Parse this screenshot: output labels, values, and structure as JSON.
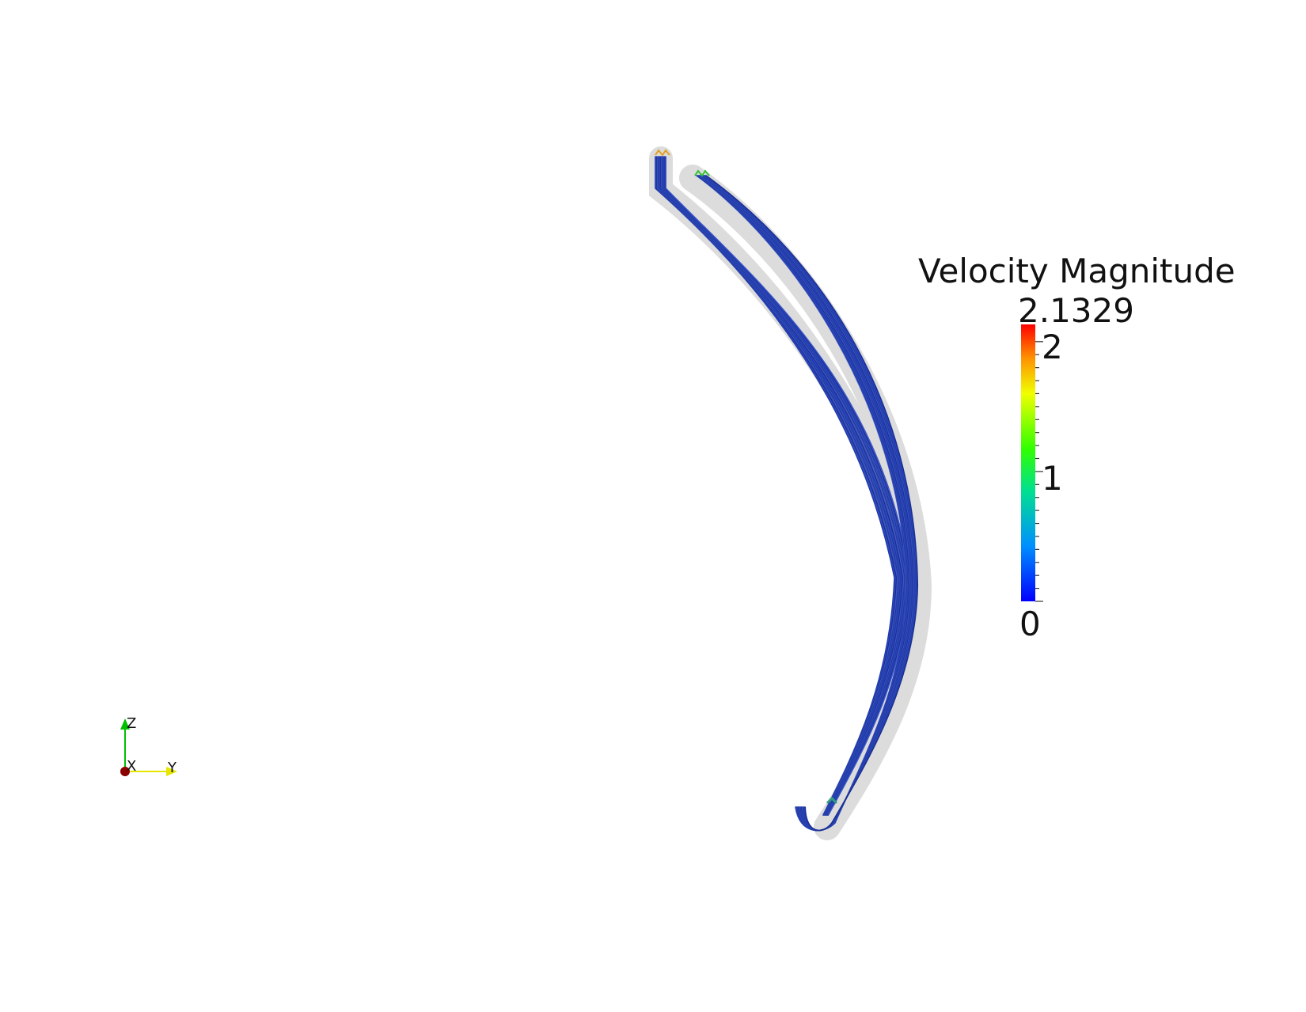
{
  "scalar_bar": {
    "title": "Velocity Magnitude",
    "max_label": "2.1329",
    "tick_labels": [
      "2",
      "1",
      "0"
    ],
    "range": [
      0,
      2.1329
    ],
    "colormap": [
      "#0000ff",
      "#00a8ff",
      "#00ff80",
      "#c8ff00",
      "#ffa000",
      "#ff0000"
    ]
  },
  "orientation_axes": {
    "x_label": "X",
    "y_label": "Y",
    "z_label": "Z",
    "x_color": "#8b0000",
    "y_color": "#e6e600",
    "z_color": "#00c000"
  },
  "scene": {
    "object": "streamline-tube",
    "dominant_color": "#2a3fb5"
  }
}
